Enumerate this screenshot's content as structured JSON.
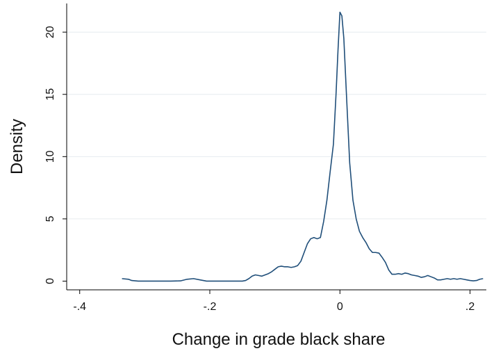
{
  "chart_data": {
    "type": "line",
    "title": "",
    "xlabel": "Change in grade black share",
    "ylabel": "Density",
    "xlim": [
      -0.42,
      0.225
    ],
    "ylim": [
      -0.7,
      22.3
    ],
    "x_ticks": [
      -0.4,
      -0.2,
      0,
      0.2
    ],
    "x_tick_labels": [
      "-.4",
      "-.2",
      "0",
      ".2"
    ],
    "y_ticks": [
      0,
      5,
      10,
      15,
      20
    ],
    "y_tick_labels": [
      "0",
      "5",
      "10",
      "15",
      "20"
    ],
    "grid": "horizontal",
    "legend": "none",
    "line_color": "#1f4e79",
    "series": [
      {
        "name": "",
        "x": [
          -0.335,
          -0.325,
          -0.32,
          -0.31,
          -0.3,
          -0.28,
          -0.26,
          -0.245,
          -0.235,
          -0.225,
          -0.215,
          -0.205,
          -0.19,
          -0.17,
          -0.15,
          -0.145,
          -0.14,
          -0.135,
          -0.13,
          -0.125,
          -0.12,
          -0.115,
          -0.11,
          -0.105,
          -0.1,
          -0.095,
          -0.09,
          -0.085,
          -0.08,
          -0.075,
          -0.07,
          -0.065,
          -0.06,
          -0.055,
          -0.05,
          -0.045,
          -0.04,
          -0.035,
          -0.03,
          -0.025,
          -0.02,
          -0.015,
          -0.01,
          -0.006,
          -0.003,
          0.0,
          0.003,
          0.006,
          0.01,
          0.015,
          0.02,
          0.025,
          0.03,
          0.035,
          0.04,
          0.045,
          0.05,
          0.055,
          0.06,
          0.065,
          0.07,
          0.075,
          0.08,
          0.085,
          0.09,
          0.095,
          0.1,
          0.105,
          0.11,
          0.115,
          0.12,
          0.125,
          0.13,
          0.135,
          0.14,
          0.145,
          0.15,
          0.155,
          0.16,
          0.165,
          0.17,
          0.175,
          0.18,
          0.185,
          0.19,
          0.195,
          0.2,
          0.205,
          0.21,
          0.215,
          0.22
        ],
        "y": [
          0.2,
          0.15,
          0.05,
          0.0,
          0.0,
          0.0,
          0.0,
          0.02,
          0.15,
          0.2,
          0.1,
          0.0,
          0.0,
          0.0,
          0.0,
          0.05,
          0.2,
          0.4,
          0.5,
          0.45,
          0.4,
          0.5,
          0.6,
          0.75,
          0.95,
          1.15,
          1.2,
          1.15,
          1.15,
          1.1,
          1.15,
          1.25,
          1.6,
          2.3,
          3.0,
          3.4,
          3.5,
          3.4,
          3.5,
          4.8,
          6.5,
          8.8,
          11.0,
          15.0,
          18.5,
          21.6,
          21.3,
          19.5,
          15.0,
          9.5,
          6.5,
          5.0,
          4.0,
          3.5,
          3.1,
          2.6,
          2.3,
          2.3,
          2.25,
          1.9,
          1.5,
          0.9,
          0.55,
          0.55,
          0.6,
          0.55,
          0.65,
          0.6,
          0.5,
          0.45,
          0.4,
          0.3,
          0.35,
          0.45,
          0.35,
          0.25,
          0.1,
          0.1,
          0.15,
          0.2,
          0.15,
          0.2,
          0.15,
          0.2,
          0.15,
          0.1,
          0.05,
          0.02,
          0.05,
          0.15,
          0.2
        ]
      }
    ]
  }
}
